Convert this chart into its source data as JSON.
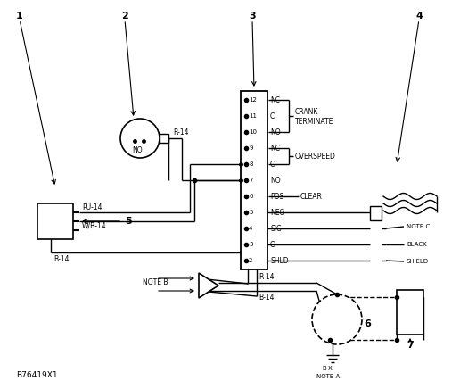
{
  "bg_color": "#ffffff",
  "fg_color": "#000000",
  "fig_width": 5.16,
  "fig_height": 4.36,
  "dpi": 100,
  "bottom_label": "B76419X1",
  "pins": [
    "12",
    "11",
    "10",
    "9",
    "8",
    "7",
    "6",
    "5",
    "4",
    "3",
    "2"
  ],
  "pin_labels": [
    "NC",
    "C",
    "NO",
    "NC",
    "C",
    "NO",
    "POS",
    "NEG",
    "SIG",
    "C",
    "SHLD"
  ]
}
